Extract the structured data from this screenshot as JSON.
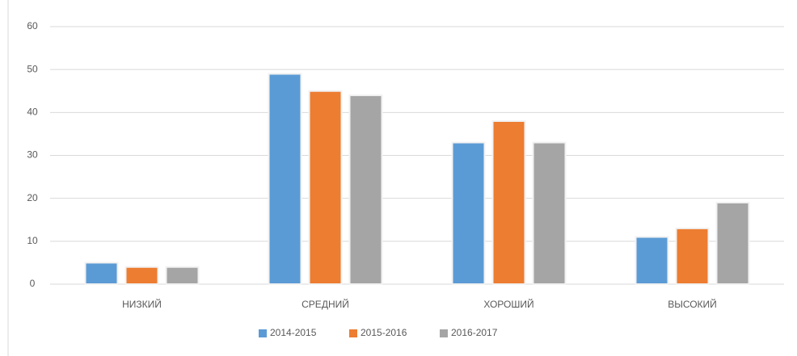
{
  "chart_data": {
    "type": "bar",
    "categories": [
      "НИЗКИЙ",
      "СРЕДНИЙ",
      "ХОРОШИЙ",
      "ВЫСОКИЙ"
    ],
    "series": [
      {
        "name": "2014-2015",
        "color": "#5b9bd5",
        "values": [
          5,
          49,
          33,
          11
        ]
      },
      {
        "name": "2015-2016",
        "color": "#ed7d31",
        "values": [
          4,
          45,
          38,
          13
        ]
      },
      {
        "name": "2016-2017",
        "color": "#a5a5a5",
        "values": [
          4,
          44,
          33,
          19
        ]
      }
    ],
    "ylim": [
      0,
      60
    ],
    "yticks": [
      0,
      10,
      20,
      30,
      40,
      50,
      60
    ],
    "grid": true,
    "legend": "bottom"
  }
}
